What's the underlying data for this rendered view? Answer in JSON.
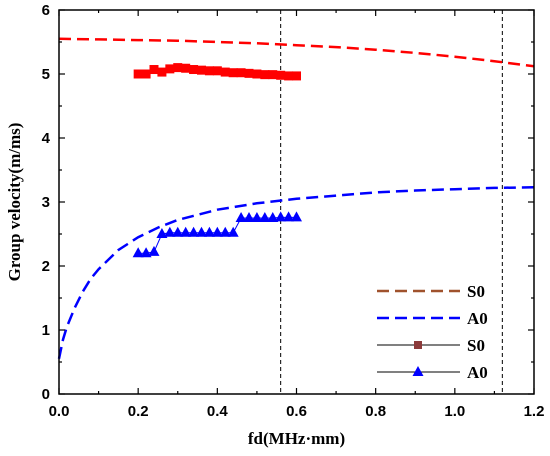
{
  "chart_data": {
    "type": "line",
    "xlabel": "fd(MHz·mm)",
    "ylabel": "Group velocity(m/ms)",
    "xlim": [
      0.0,
      1.2
    ],
    "ylim": [
      0,
      6
    ],
    "xticks": [
      "0.0",
      "0.2",
      "0.4",
      "0.6",
      "0.8",
      "1.0",
      "1.2"
    ],
    "yticks": [
      "0",
      "1",
      "2",
      "3",
      "4",
      "5",
      "6"
    ],
    "grid": false,
    "legend_position": "bottom-right",
    "vertical_reference_lines": [
      0.56,
      1.12
    ],
    "series": [
      {
        "name": "S0",
        "kind": "theory-dashed",
        "color": "#ff0000",
        "x": [
          0.0,
          0.1,
          0.2,
          0.3,
          0.4,
          0.5,
          0.6,
          0.7,
          0.8,
          0.9,
          1.0,
          1.1,
          1.2
        ],
        "y": [
          5.55,
          5.54,
          5.53,
          5.52,
          5.5,
          5.48,
          5.45,
          5.42,
          5.38,
          5.33,
          5.27,
          5.2,
          5.12
        ]
      },
      {
        "name": "A0",
        "kind": "theory-dashed",
        "color": "#0000ff",
        "x": [
          0.0,
          0.01,
          0.02,
          0.04,
          0.06,
          0.08,
          0.1,
          0.15,
          0.2,
          0.25,
          0.3,
          0.4,
          0.5,
          0.6,
          0.7,
          0.8,
          0.9,
          1.0,
          1.1,
          1.2
        ],
        "y": [
          0.55,
          0.85,
          1.05,
          1.35,
          1.6,
          1.8,
          1.95,
          2.25,
          2.45,
          2.6,
          2.72,
          2.88,
          2.98,
          3.05,
          3.1,
          3.15,
          3.18,
          3.2,
          3.22,
          3.23
        ]
      },
      {
        "name": "S0",
        "kind": "experiment-square",
        "color": "#ff0000",
        "x": [
          0.2,
          0.22,
          0.24,
          0.26,
          0.28,
          0.3,
          0.32,
          0.34,
          0.36,
          0.38,
          0.4,
          0.42,
          0.44,
          0.46,
          0.48,
          0.5,
          0.52,
          0.54,
          0.56,
          0.58,
          0.6
        ],
        "y": [
          5.0,
          5.0,
          5.07,
          5.03,
          5.08,
          5.1,
          5.09,
          5.07,
          5.06,
          5.05,
          5.05,
          5.03,
          5.02,
          5.02,
          5.01,
          5.0,
          4.99,
          4.99,
          4.98,
          4.97,
          4.97
        ]
      },
      {
        "name": "A0",
        "kind": "experiment-triangle",
        "color": "#0000ff",
        "x": [
          0.2,
          0.22,
          0.24,
          0.26,
          0.28,
          0.3,
          0.32,
          0.34,
          0.36,
          0.38,
          0.4,
          0.42,
          0.44,
          0.46,
          0.48,
          0.5,
          0.52,
          0.54,
          0.56,
          0.58,
          0.6
        ],
        "y": [
          2.2,
          2.2,
          2.22,
          2.5,
          2.52,
          2.52,
          2.52,
          2.52,
          2.52,
          2.52,
          2.52,
          2.52,
          2.52,
          2.75,
          2.75,
          2.75,
          2.75,
          2.75,
          2.76,
          2.76,
          2.76
        ]
      }
    ]
  }
}
